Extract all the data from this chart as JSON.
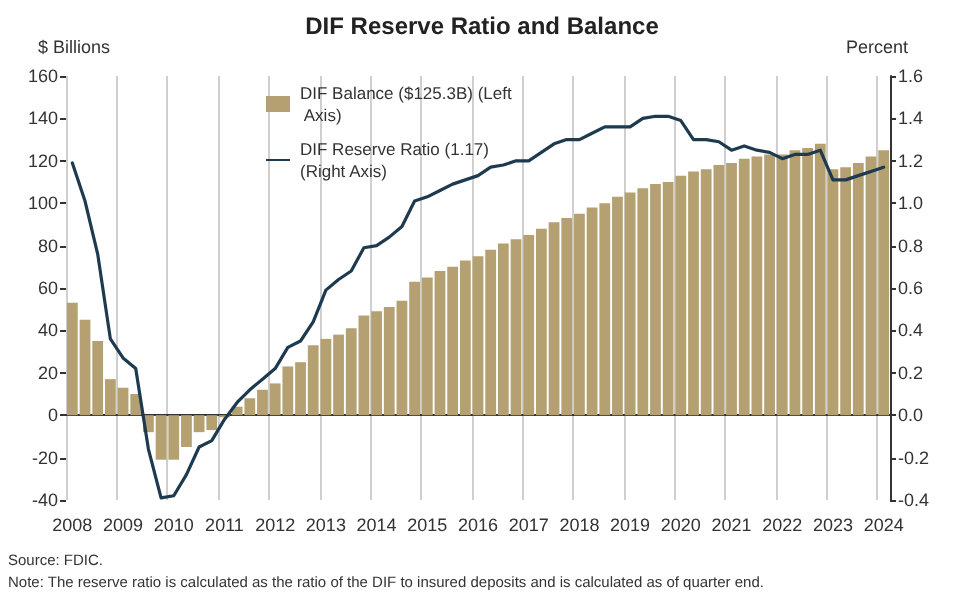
{
  "chart_data": {
    "type": "bar",
    "title": "DIF Reserve Ratio and Balance",
    "ylabel": "$ Billions",
    "y2label": "Percent",
    "annotations": [
      "Source: FDIC.",
      "Note: The reserve ratio is calculated as the ratio of the DIF to insured deposits and is calculated as of quarter end."
    ],
    "categories": [
      "2008",
      null,
      null,
      null,
      "2009",
      null,
      null,
      null,
      "2010",
      null,
      null,
      null,
      "2011",
      null,
      null,
      null,
      "2012",
      null,
      null,
      null,
      "2013",
      null,
      null,
      null,
      "2014",
      null,
      null,
      null,
      "2015",
      null,
      null,
      null,
      "2016",
      null,
      null,
      null,
      "2017",
      null,
      null,
      null,
      "2018",
      null,
      null,
      null,
      "2019",
      null,
      null,
      null,
      "2020",
      null,
      null,
      null,
      "2021",
      null,
      null,
      null,
      "2022",
      null,
      null,
      null,
      "2023",
      null,
      null,
      null,
      "2024"
    ],
    "series": [
      {
        "name": "DIF Balance ($125.3B) (Left Axis)",
        "color": "#b5a072",
        "values": [
          53,
          45,
          35,
          17,
          13,
          10,
          -8,
          -21,
          -21,
          -15,
          -8,
          -7,
          -1,
          4,
          8,
          12,
          15,
          23,
          25,
          33,
          36,
          38,
          41,
          47,
          49,
          51,
          54,
          63,
          65,
          68,
          70,
          73,
          75,
          78,
          81,
          83,
          85,
          88,
          91,
          93,
          95,
          98,
          100,
          103,
          105,
          107,
          109,
          110,
          113,
          115,
          116,
          118,
          119,
          121,
          122,
          123,
          123,
          125,
          126,
          128,
          116,
          117,
          119,
          122,
          125
        ]
      },
      {
        "name": "DIF Reserve Ratio (1.17) (Right Axis)",
        "type": "line",
        "axis": "y2",
        "color": "#1d3a4f",
        "values": [
          1.19,
          1.01,
          0.76,
          0.36,
          0.27,
          0.22,
          -0.16,
          -0.39,
          -0.38,
          -0.28,
          -0.15,
          -0.12,
          -0.02,
          0.06,
          0.12,
          0.17,
          0.22,
          0.32,
          0.35,
          0.44,
          0.59,
          0.64,
          0.68,
          0.79,
          0.8,
          0.84,
          0.89,
          1.01,
          1.03,
          1.06,
          1.09,
          1.11,
          1.13,
          1.17,
          1.18,
          1.2,
          1.2,
          1.24,
          1.28,
          1.3,
          1.3,
          1.33,
          1.36,
          1.36,
          1.36,
          1.4,
          1.41,
          1.41,
          1.39,
          1.3,
          1.3,
          1.29,
          1.25,
          1.27,
          1.25,
          1.24,
          1.21,
          1.23,
          1.23,
          1.25,
          1.11,
          1.11,
          1.13,
          1.15,
          1.17
        ]
      }
    ],
    "ylim": [
      -40,
      160
    ],
    "yticks": [
      -40,
      -20,
      0,
      20,
      40,
      60,
      80,
      100,
      120,
      140,
      160
    ],
    "y2lim": [
      -0.4,
      1.6
    ],
    "y2ticks": [
      {
        "value": -0.4,
        "label": "-0.4"
      },
      {
        "value": -0.2,
        "label": "-0.2"
      },
      {
        "value": 0,
        "label": "0.0"
      },
      {
        "value": 0.2,
        "label": "0.2"
      },
      {
        "value": 0.4,
        "label": "0.4"
      },
      {
        "value": 0.6,
        "label": "0.6"
      },
      {
        "value": 0.8,
        "label": "0.8"
      },
      {
        "value": 1,
        "label": "1.0"
      },
      {
        "value": 1.2,
        "label": "1.2"
      },
      {
        "value": 1.4,
        "label": "1.4"
      },
      {
        "value": 1.6,
        "label": "1.6"
      }
    ],
    "grid": "x",
    "legend": "top left",
    "marker": "none",
    "line_style": "solid"
  }
}
